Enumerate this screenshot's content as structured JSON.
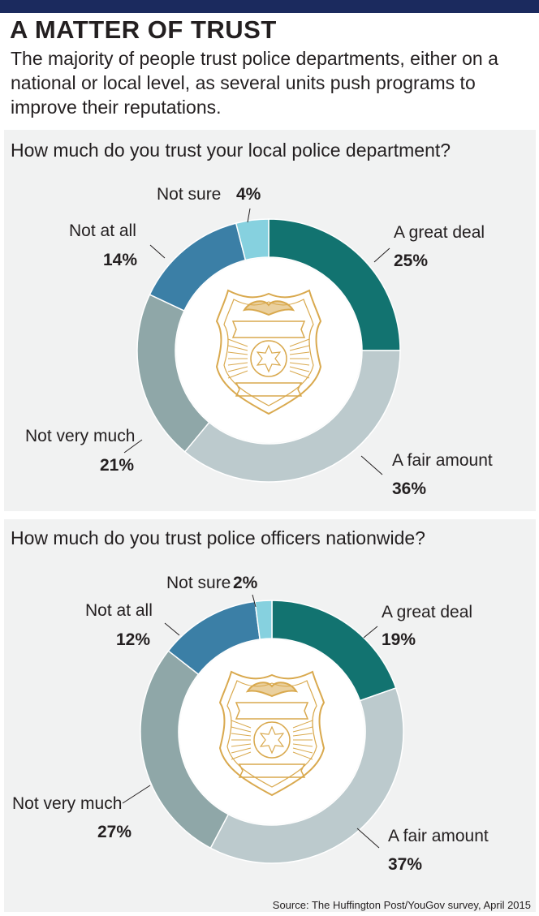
{
  "header": {
    "title": "A MATTER OF TRUST",
    "subtitle": "The majority of people trust police departments, either on a national or local level, as several units push programs to improve their reputations."
  },
  "colors": {
    "a_great_deal": "#127370",
    "a_fair_amount": "#bccacd",
    "not_very_much": "#8fa7a8",
    "not_at_all": "#3b7fa6",
    "not_sure": "#86d1df",
    "badge_gold": "#d9a94e",
    "panel_bg": "#f1f2f2",
    "top_bar": "#1b2a5e"
  },
  "chart_data": [
    {
      "type": "pie",
      "donut": true,
      "title": "How much do you trust your local police department?",
      "categories": [
        "A great deal",
        "A fair amount",
        "Not very much",
        "Not at all",
        "Not sure"
      ],
      "values": [
        25,
        36,
        21,
        14,
        4
      ],
      "value_labels": [
        "25%",
        "36%",
        "21%",
        "14%",
        "4%"
      ],
      "center_icon": "police-badge-icon"
    },
    {
      "type": "pie",
      "donut": true,
      "title": "How much do you trust police officers nationwide?",
      "categories": [
        "A great deal",
        "A fair amount",
        "Not very much",
        "Not at all",
        "Not sure"
      ],
      "values": [
        19,
        37,
        27,
        12,
        2
      ],
      "value_labels": [
        "19%",
        "37%",
        "27%",
        "12%",
        "2%"
      ],
      "center_icon": "police-badge-icon"
    }
  ],
  "source": "Source: The Huffington Post/YouGov survey, April 2015"
}
